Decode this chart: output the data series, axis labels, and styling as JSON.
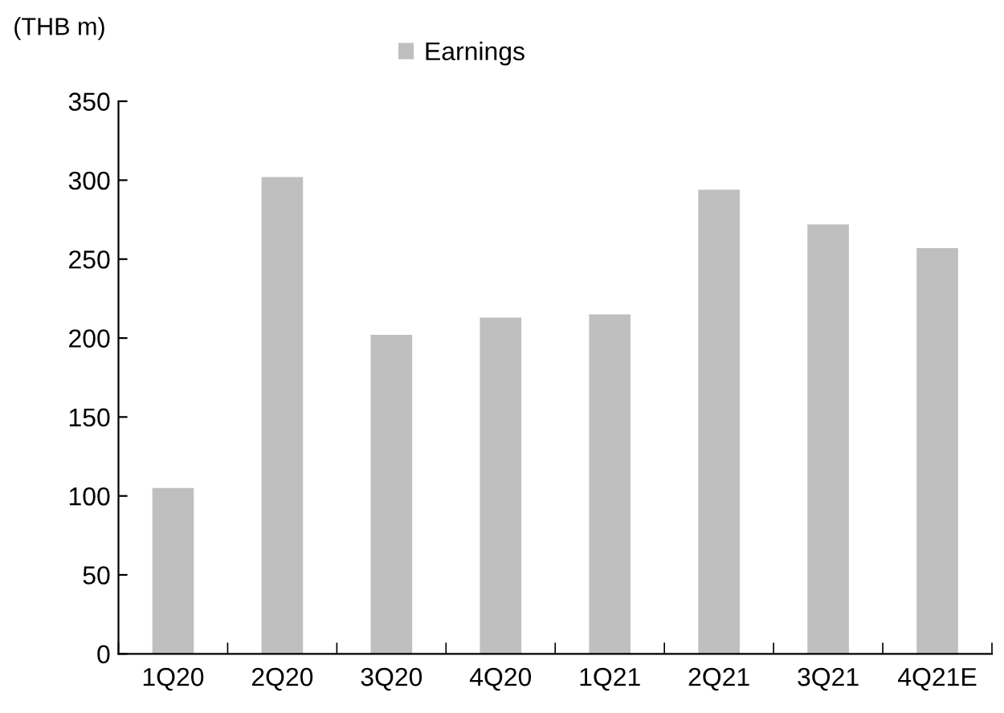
{
  "chart_data": {
    "type": "bar",
    "ylabel": "(THB m)",
    "categories": [
      "1Q20",
      "2Q20",
      "3Q20",
      "4Q20",
      "1Q21",
      "2Q21",
      "3Q21",
      "4Q21E"
    ],
    "series": [
      {
        "name": "Earnings",
        "color": "#bfbfbf",
        "values": [
          105,
          302,
          202,
          213,
          215,
          294,
          272,
          257
        ]
      }
    ],
    "ylim": [
      0,
      350
    ],
    "yticks": [
      0,
      50,
      100,
      150,
      200,
      250,
      300,
      350
    ],
    "grid": false,
    "legend": "top"
  }
}
